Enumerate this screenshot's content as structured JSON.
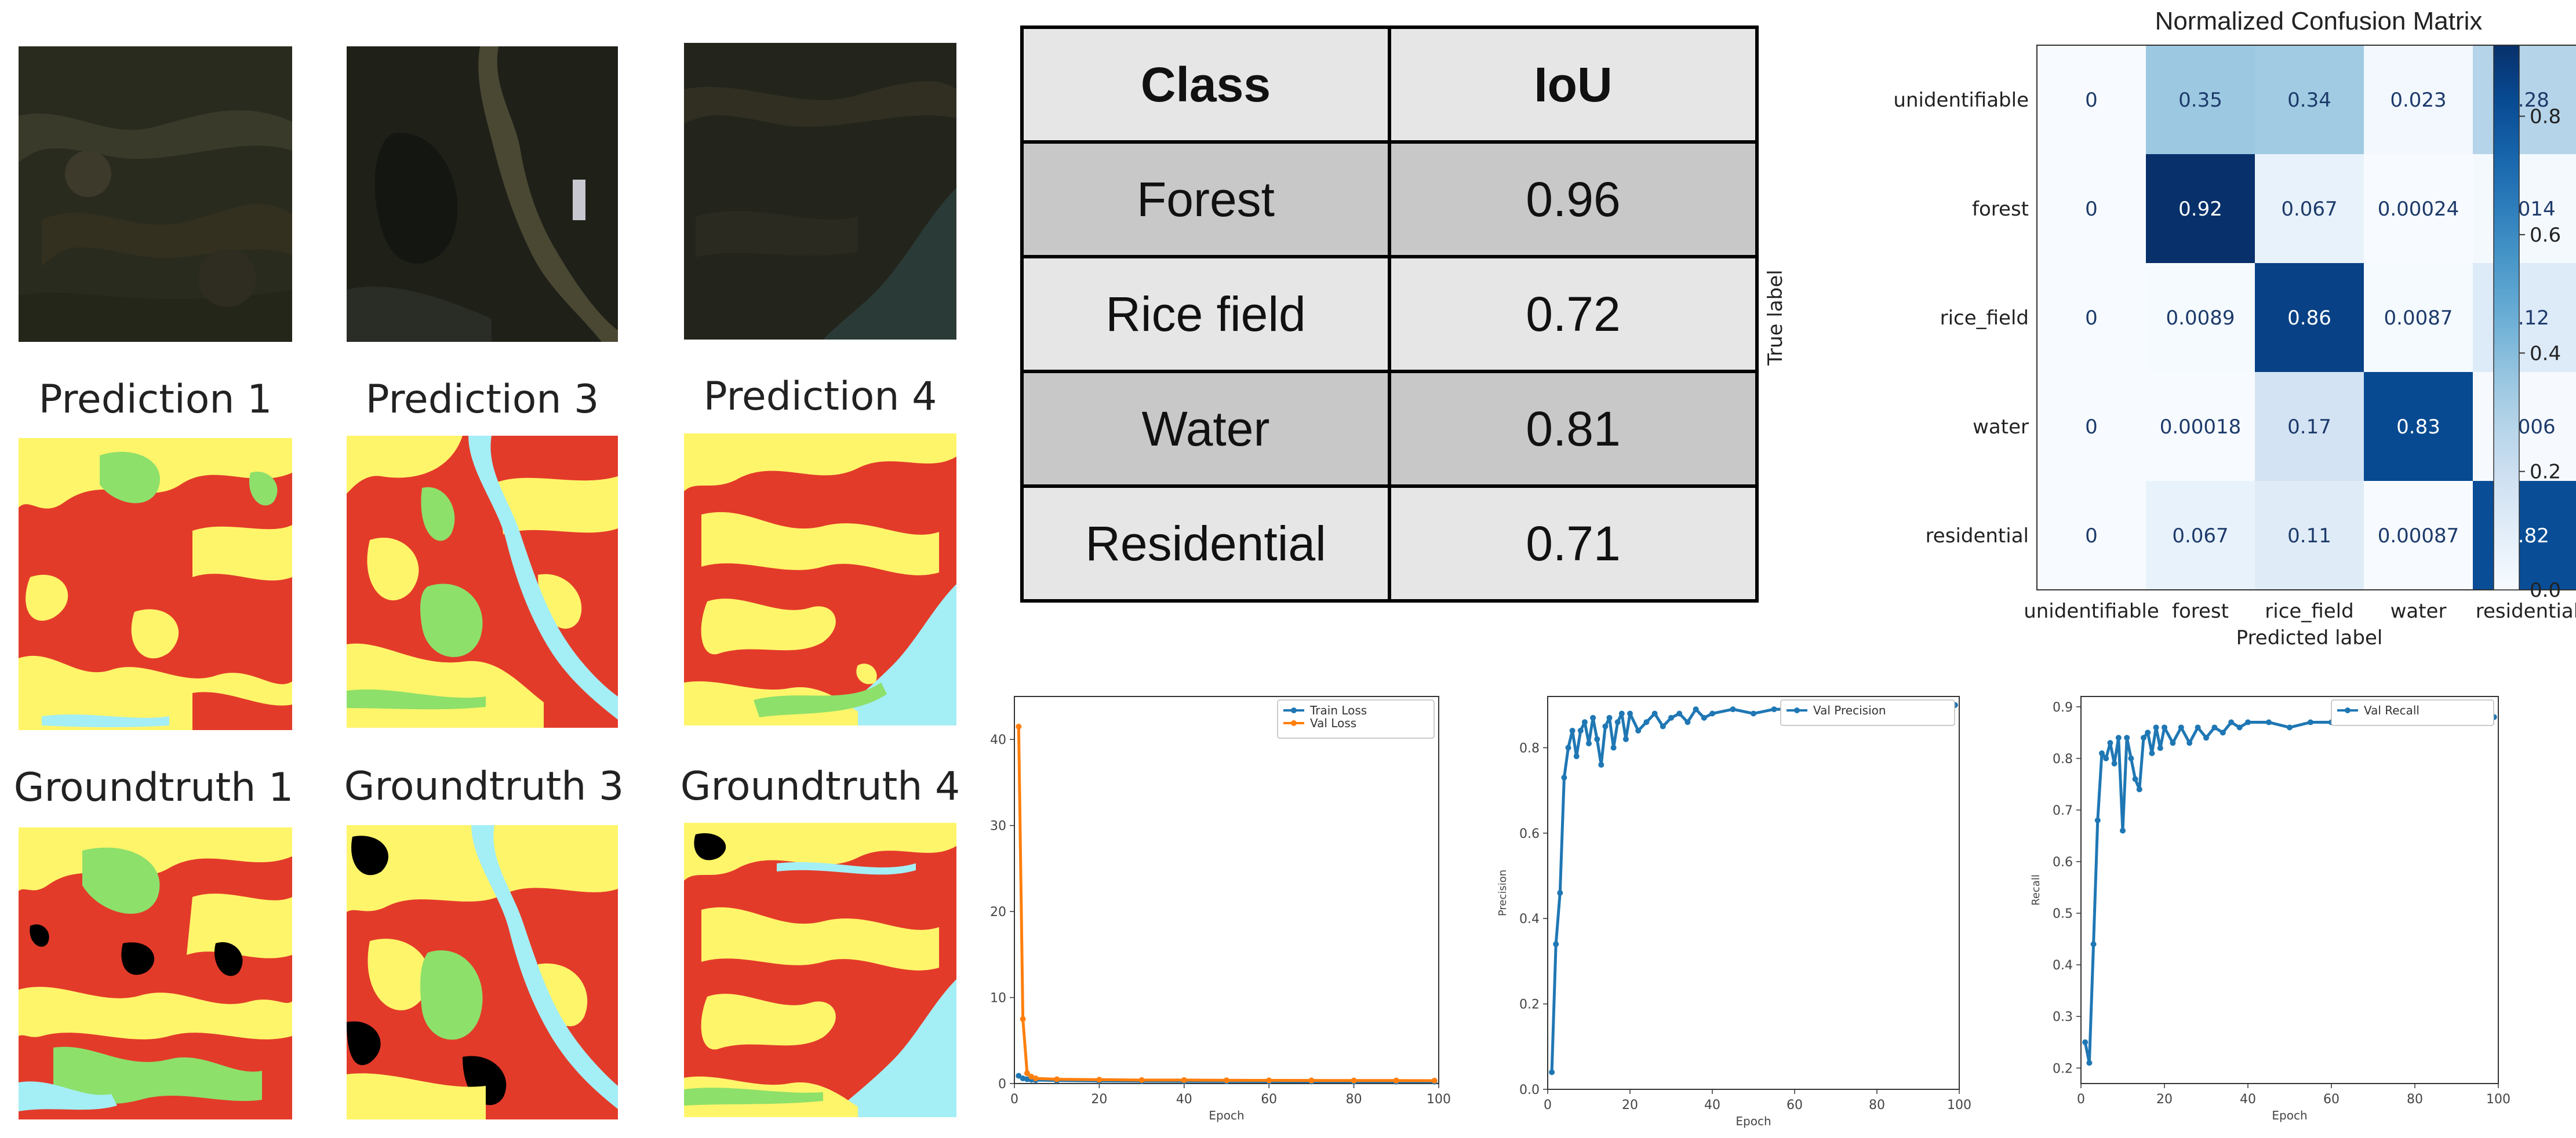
{
  "images": {
    "prediction_titles": [
      "Prediction 1",
      "Prediction 3",
      "Prediction 4"
    ],
    "groundtruth_titles": [
      "Groundtruth 1",
      "Groundtruth 3",
      "Groundtruth 4"
    ],
    "class_colors": {
      "forest": "#8de06a",
      "rice_field": "#fff56a",
      "water": "#a4eef5",
      "residential": "#e33b2a",
      "unidentifiable": "#000000"
    }
  },
  "iou_table": {
    "headers": [
      "Class",
      "IoU"
    ],
    "rows": [
      {
        "class": "Forest",
        "iou": "0.96"
      },
      {
        "class": "Rice field",
        "iou": "0.72"
      },
      {
        "class": "Water",
        "iou": "0.81"
      },
      {
        "class": "Residential",
        "iou": "0.71"
      }
    ]
  },
  "chart_data": [
    {
      "type": "heatmap",
      "title": "Normalized Confusion Matrix",
      "xlabel": "Predicted label",
      "ylabel": "True label",
      "labels": [
        "unidentifiable",
        "forest",
        "rice_field",
        "water",
        "residential"
      ],
      "matrix": [
        [
          "0",
          "0.35",
          "0.34",
          "0.023",
          "0.28"
        ],
        [
          "0",
          "0.92",
          "0.067",
          "0.00024",
          "0.014"
        ],
        [
          "0",
          "0.0089",
          "0.86",
          "0.0087",
          "0.12"
        ],
        [
          "0",
          "0.00018",
          "0.17",
          "0.83",
          "0.006"
        ],
        [
          "0",
          "0.067",
          "0.11",
          "0.00087",
          "0.82"
        ]
      ],
      "colorbar_ticks": [
        "0.0",
        "0.2",
        "0.4",
        "0.6",
        "0.8"
      ],
      "colorbar_range": [
        0,
        0.92
      ],
      "colormap": "Blues"
    },
    {
      "type": "line",
      "xlabel": "Epoch",
      "ylabel": "",
      "xlim": [
        0,
        100
      ],
      "ylim": [
        0,
        45
      ],
      "xticks": [
        "0",
        "20",
        "40",
        "60",
        "80",
        "100"
      ],
      "yticks": [
        "0",
        "10",
        "20",
        "30",
        "40"
      ],
      "legend_position": "top-right",
      "series": [
        {
          "name": "Train Loss",
          "color": "#1f77b4",
          "x": [
            1,
            2,
            3,
            4,
            5,
            10,
            20,
            30,
            40,
            50,
            60,
            70,
            80,
            90,
            99
          ],
          "y": [
            0.9,
            0.6,
            0.5,
            0.45,
            0.4,
            0.35,
            0.3,
            0.28,
            0.26,
            0.25,
            0.24,
            0.23,
            0.22,
            0.22,
            0.21
          ]
        },
        {
          "name": "Val Loss",
          "color": "#ff7f0e",
          "x": [
            1,
            2,
            3,
            4,
            5,
            10,
            20,
            30,
            40,
            50,
            60,
            70,
            80,
            90,
            99
          ],
          "y": [
            41.5,
            7.5,
            1.2,
            0.8,
            0.6,
            0.5,
            0.45,
            0.4,
            0.4,
            0.38,
            0.37,
            0.36,
            0.35,
            0.35,
            0.34
          ]
        }
      ]
    },
    {
      "type": "line",
      "xlabel": "Epoch",
      "ylabel": "Precision",
      "xlim": [
        0,
        100
      ],
      "ylim": [
        0,
        0.92
      ],
      "xticks": [
        "0",
        "20",
        "40",
        "60",
        "80",
        "100"
      ],
      "yticks": [
        "0.0",
        "0.2",
        "0.4",
        "0.6",
        "0.8"
      ],
      "legend_position": "top-right",
      "series": [
        {
          "name": "Val Precision",
          "color": "#1f77b4",
          "x": [
            1,
            2,
            3,
            4,
            5,
            6,
            7,
            8,
            9,
            10,
            11,
            12,
            13,
            14,
            15,
            16,
            17,
            18,
            19,
            20,
            22,
            24,
            26,
            28,
            30,
            32,
            34,
            36,
            38,
            40,
            45,
            50,
            55,
            60,
            65,
            70,
            75,
            80,
            85,
            90,
            95,
            99
          ],
          "y": [
            0.04,
            0.34,
            0.46,
            0.73,
            0.8,
            0.84,
            0.78,
            0.84,
            0.86,
            0.81,
            0.87,
            0.82,
            0.76,
            0.85,
            0.87,
            0.8,
            0.86,
            0.88,
            0.82,
            0.88,
            0.84,
            0.86,
            0.88,
            0.85,
            0.87,
            0.88,
            0.86,
            0.89,
            0.87,
            0.88,
            0.89,
            0.88,
            0.89,
            0.89,
            0.9,
            0.89,
            0.9,
            0.9,
            0.9,
            0.9,
            0.9,
            0.9
          ]
        }
      ]
    },
    {
      "type": "line",
      "xlabel": "Epoch",
      "ylabel": "Recall",
      "xlim": [
        0,
        100
      ],
      "ylim": [
        0.17,
        0.92
      ],
      "xticks": [
        "0",
        "20",
        "40",
        "60",
        "80",
        "100"
      ],
      "yticks": [
        "0.2",
        "0.3",
        "0.4",
        "0.5",
        "0.6",
        "0.7",
        "0.8",
        "0.9"
      ],
      "legend_position": "top-right",
      "series": [
        {
          "name": "Val Recall",
          "color": "#1f77b4",
          "x": [
            1,
            2,
            3,
            4,
            5,
            6,
            7,
            8,
            9,
            10,
            11,
            12,
            13,
            14,
            15,
            16,
            17,
            18,
            19,
            20,
            22,
            24,
            26,
            28,
            30,
            32,
            34,
            36,
            38,
            40,
            45,
            50,
            55,
            60,
            65,
            70,
            75,
            80,
            85,
            90,
            95,
            99
          ],
          "y": [
            0.25,
            0.21,
            0.44,
            0.68,
            0.81,
            0.8,
            0.83,
            0.79,
            0.84,
            0.66,
            0.84,
            0.8,
            0.76,
            0.74,
            0.84,
            0.85,
            0.81,
            0.86,
            0.82,
            0.86,
            0.83,
            0.86,
            0.83,
            0.86,
            0.84,
            0.86,
            0.85,
            0.87,
            0.86,
            0.87,
            0.87,
            0.86,
            0.87,
            0.87,
            0.88,
            0.87,
            0.88,
            0.88,
            0.88,
            0.88,
            0.88,
            0.88
          ]
        }
      ]
    }
  ]
}
